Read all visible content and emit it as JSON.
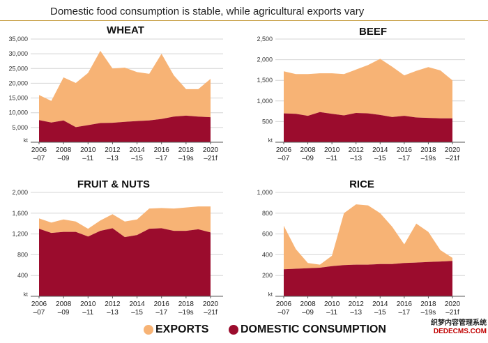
{
  "header": {
    "title": "Domestic food consumption is stable, while agricultural exports vary"
  },
  "colors": {
    "exports": "#f7b375",
    "domestic": "#9b0c2d",
    "background": "#ffffff",
    "grid": "#d4d4d4",
    "header_rule": "#c9a24a"
  },
  "legend": {
    "exports_label": "EXPORTS",
    "domestic_label": "DOMESTIC CONSUMPTION"
  },
  "watermark": {
    "line1": "织梦内容管理系统",
    "line2": "DEDECMS.COM"
  },
  "chart_data": [
    {
      "type": "area",
      "title": "WHEAT",
      "unit_label": "kt",
      "ylim": [
        0,
        35000
      ],
      "yticks": [
        5000,
        10000,
        15000,
        20000,
        25000,
        30000,
        35000
      ],
      "ytick_labels": [
        "5,000",
        "10,000",
        "15,000",
        "20,000",
        "25,000",
        "30,000",
        "35,000"
      ],
      "x": [
        2006,
        2007,
        2008,
        2009,
        2010,
        2011,
        2012,
        2013,
        2014,
        2015,
        2016,
        2017,
        2018,
        2019,
        2020
      ],
      "xtick_labels_top": [
        "2006",
        "2008",
        "2010",
        "2012",
        "2014",
        "2016",
        "2018",
        "2020"
      ],
      "xtick_labels_bottom": [
        "–07",
        "–09",
        "–11",
        "–13",
        "–15",
        "–17",
        "–19s",
        "–21f"
      ],
      "grid": true,
      "series": [
        {
          "name": "DOMESTIC CONSUMPTION",
          "values": [
            7500,
            6700,
            7400,
            5100,
            5800,
            6500,
            6600,
            6900,
            7200,
            7400,
            7900,
            8700,
            9000,
            8700,
            8500
          ]
        },
        {
          "name": "EXPORTS",
          "values": [
            8500,
            7300,
            14600,
            15000,
            17700,
            24500,
            18400,
            18400,
            16600,
            15800,
            22100,
            14000,
            9000,
            9300,
            13000
          ]
        }
      ]
    },
    {
      "type": "area",
      "title": "BEEF",
      "unit_label": "kt",
      "ylim": [
        0,
        2500
      ],
      "yticks": [
        500,
        1000,
        1500,
        2000,
        2500
      ],
      "ytick_labels": [
        "500",
        "1,000",
        "1,500",
        "2,000",
        "2,500"
      ],
      "x": [
        2006,
        2007,
        2008,
        2009,
        2010,
        2011,
        2012,
        2013,
        2014,
        2015,
        2016,
        2017,
        2018,
        2019,
        2020
      ],
      "xtick_labels_top": [
        "2006",
        "2008",
        "2010",
        "2012",
        "2014",
        "2016",
        "2018",
        "2020"
      ],
      "xtick_labels_bottom": [
        "–07",
        "–09",
        "–11",
        "–13",
        "–15",
        "–17",
        "–19s",
        "–21f"
      ],
      "grid": true,
      "series": [
        {
          "name": "DOMESTIC CONSUMPTION",
          "values": [
            700,
            690,
            640,
            730,
            690,
            650,
            710,
            700,
            660,
            610,
            640,
            600,
            590,
            580,
            580
          ]
        },
        {
          "name": "EXPORTS",
          "values": [
            1020,
            960,
            1010,
            940,
            980,
            1000,
            1050,
            1170,
            1360,
            1220,
            980,
            1130,
            1230,
            1160,
            920
          ]
        }
      ]
    },
    {
      "type": "area",
      "title": "FRUIT & NUTS",
      "unit_label": "kt",
      "ylim": [
        0,
        2000
      ],
      "yticks": [
        400,
        800,
        1200,
        1600,
        2000
      ],
      "ytick_labels": [
        "400",
        "800",
        "1,200",
        "1,600",
        "2,000"
      ],
      "x": [
        2006,
        2007,
        2008,
        2009,
        2010,
        2011,
        2012,
        2013,
        2014,
        2015,
        2016,
        2017,
        2018,
        2019,
        2020
      ],
      "xtick_labels_top": [
        "2006",
        "2008",
        "2010",
        "2012",
        "2014",
        "2016",
        "2018",
        "2020"
      ],
      "xtick_labels_bottom": [
        "–07",
        "–09",
        "–11",
        "–13",
        "–15",
        "–17",
        "–19s",
        "–21f"
      ],
      "grid": true,
      "series": [
        {
          "name": "DOMESTIC CONSUMPTION",
          "values": [
            1300,
            1220,
            1240,
            1240,
            1150,
            1260,
            1310,
            1140,
            1180,
            1300,
            1310,
            1260,
            1260,
            1290,
            1230
          ]
        },
        {
          "name": "EXPORTS",
          "values": [
            200,
            200,
            240,
            200,
            150,
            200,
            270,
            300,
            300,
            390,
            390,
            430,
            450,
            440,
            500
          ]
        }
      ]
    },
    {
      "type": "area",
      "title": "RICE",
      "unit_label": "kt",
      "ylim": [
        0,
        1000
      ],
      "yticks": [
        200,
        400,
        600,
        800,
        1000
      ],
      "ytick_labels": [
        "200",
        "400",
        "600",
        "800",
        "1,000"
      ],
      "x": [
        2006,
        2007,
        2008,
        2009,
        2010,
        2011,
        2012,
        2013,
        2014,
        2015,
        2016,
        2017,
        2018,
        2019,
        2020
      ],
      "xtick_labels_top": [
        "2006",
        "2008",
        "2010",
        "2012",
        "2014",
        "2016",
        "2018",
        "2020"
      ],
      "xtick_labels_bottom": [
        "–07",
        "–09",
        "–11",
        "–13",
        "–15",
        "–17",
        "–19s",
        "–21f"
      ],
      "grid": true,
      "series": [
        {
          "name": "DOMESTIC CONSUMPTION",
          "values": [
            260,
            265,
            270,
            275,
            290,
            300,
            305,
            305,
            310,
            310,
            320,
            325,
            330,
            335,
            340
          ]
        },
        {
          "name": "EXPORTS",
          "values": [
            420,
            190,
            50,
            30,
            100,
            500,
            580,
            570,
            490,
            360,
            180,
            375,
            290,
            110,
            30
          ]
        }
      ]
    }
  ]
}
